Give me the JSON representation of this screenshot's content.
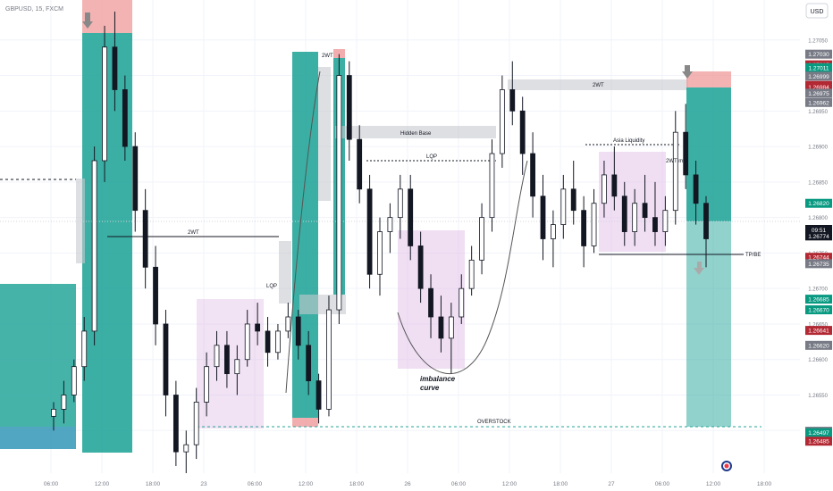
{
  "header": {
    "symbol": "GBPUSD, 15, FXCM"
  },
  "currency": "USD",
  "clock": "09:51",
  "colors": {
    "bull": "#089981",
    "bear": "#f23645",
    "candle": "#131722",
    "zone_green": "#26a69a",
    "zone_red": "#ef9a9a",
    "zone_purple": "#e1bee7",
    "zone_grey": "#c8cacf",
    "grid": "#f0f3fa",
    "axis_text": "#787b86"
  },
  "chart_data": {
    "type": "candlestick",
    "title": "GBPUSD, 15, FXCM",
    "ylim": [
      1.2644,
      1.271
    ],
    "y_ticks": [
      1.265,
      1.2655,
      1.266,
      1.2665,
      1.267,
      1.2675,
      1.268,
      1.2685,
      1.269,
      1.2695,
      1.27,
      1.2705
    ],
    "x_ticks": [
      "06:00",
      "12:00",
      "18:00",
      "23",
      "06:00",
      "12:00",
      "18:00",
      "26",
      "06:00",
      "12:00",
      "18:00",
      "27",
      "06:00",
      "12:00",
      "18:00"
    ],
    "grid": true,
    "price_tags": [
      {
        "value": "1.27030",
        "color": "#787b86"
      },
      {
        "value": "1.27015",
        "color": "#b22833"
      },
      {
        "value": "1.27011",
        "color": "#089981"
      },
      {
        "value": "1.26999",
        "color": "#787b86"
      },
      {
        "value": "1.26986",
        "color": "#b22833"
      },
      {
        "value": "1.26984",
        "color": "#b22833"
      },
      {
        "value": "1.26975",
        "color": "#787b86"
      },
      {
        "value": "1.26962",
        "color": "#787b86"
      },
      {
        "value": "1.26820",
        "color": "#089981"
      },
      {
        "value": "1.26774",
        "color": "#131722"
      },
      {
        "value": "1.26744",
        "color": "#b22833"
      },
      {
        "value": "1.26735",
        "color": "#787b86"
      },
      {
        "value": "1.26685",
        "color": "#089981"
      },
      {
        "value": "1.26670",
        "color": "#089981"
      },
      {
        "value": "1.26641",
        "color": "#b22833"
      },
      {
        "value": "1.26620",
        "color": "#787b86"
      },
      {
        "value": "1.26499",
        "color": "#787b86"
      },
      {
        "value": "1.26497",
        "color": "#089981"
      },
      {
        "value": "1.26487",
        "color": "#089981"
      },
      {
        "value": "1.26485",
        "color": "#b22833"
      }
    ],
    "annotations": [
      "2WT",
      "2WT",
      "2WT",
      "Hidden Base",
      "LQP",
      "LQP",
      "Asia Liquidity",
      "2WT mini",
      "TP/BE",
      "OVERSTOCK",
      "imbalance",
      "curve"
    ],
    "candles": [
      [
        1.2652,
        1.2654,
        1.265,
        1.2653
      ],
      [
        1.2653,
        1.2657,
        1.2651,
        1.2655
      ],
      [
        1.2655,
        1.266,
        1.2654,
        1.2659
      ],
      [
        1.2659,
        1.2666,
        1.2657,
        1.2664
      ],
      [
        1.2664,
        1.269,
        1.2662,
        1.2688
      ],
      [
        1.2688,
        1.2707,
        1.2685,
        1.2704
      ],
      [
        1.2704,
        1.2709,
        1.2695,
        1.2698
      ],
      [
        1.2698,
        1.27,
        1.2688,
        1.269
      ],
      [
        1.269,
        1.2692,
        1.2678,
        1.2681
      ],
      [
        1.2681,
        1.2684,
        1.267,
        1.2673
      ],
      [
        1.2673,
        1.2676,
        1.2662,
        1.2665
      ],
      [
        1.2665,
        1.2667,
        1.2652,
        1.2655
      ],
      [
        1.2655,
        1.2657,
        1.2645,
        1.2647
      ],
      [
        1.2647,
        1.265,
        1.2644,
        1.2648
      ],
      [
        1.2648,
        1.2656,
        1.2646,
        1.2654
      ],
      [
        1.2654,
        1.2661,
        1.2652,
        1.2659
      ],
      [
        1.2659,
        1.2664,
        1.2657,
        1.2662
      ],
      [
        1.2662,
        1.2664,
        1.2656,
        1.2658
      ],
      [
        1.2658,
        1.2662,
        1.2655,
        1.266
      ],
      [
        1.266,
        1.2667,
        1.2659,
        1.2665
      ],
      [
        1.2665,
        1.2668,
        1.2662,
        1.2664
      ],
      [
        1.2664,
        1.2666,
        1.2659,
        1.2661
      ],
      [
        1.2661,
        1.2665,
        1.266,
        1.2664
      ],
      [
        1.2664,
        1.2668,
        1.2663,
        1.2666
      ],
      [
        1.2666,
        1.2667,
        1.266,
        1.2662
      ],
      [
        1.2662,
        1.2664,
        1.2655,
        1.2657
      ],
      [
        1.2657,
        1.2658,
        1.2651,
        1.2653
      ],
      [
        1.2653,
        1.2669,
        1.2652,
        1.2667
      ],
      [
        1.2667,
        1.2703,
        1.2665,
        1.27
      ],
      [
        1.27,
        1.2702,
        1.2688,
        1.2691
      ],
      [
        1.2691,
        1.2693,
        1.2682,
        1.2684
      ],
      [
        1.2684,
        1.2686,
        1.267,
        1.2672
      ],
      [
        1.2672,
        1.268,
        1.2669,
        1.2678
      ],
      [
        1.2678,
        1.2682,
        1.2675,
        1.268
      ],
      [
        1.268,
        1.2686,
        1.2677,
        1.2684
      ],
      [
        1.2684,
        1.2686,
        1.2674,
        1.2676
      ],
      [
        1.2676,
        1.2678,
        1.2668,
        1.267
      ],
      [
        1.267,
        1.2672,
        1.2663,
        1.2666
      ],
      [
        1.2666,
        1.2669,
        1.2661,
        1.2663
      ],
      [
        1.2663,
        1.2668,
        1.2658,
        1.2666
      ],
      [
        1.2666,
        1.2672,
        1.2665,
        1.267
      ],
      [
        1.267,
        1.2676,
        1.2669,
        1.2674
      ],
      [
        1.2674,
        1.2682,
        1.2672,
        1.268
      ],
      [
        1.268,
        1.2691,
        1.2678,
        1.2689
      ],
      [
        1.2689,
        1.27,
        1.2687,
        1.2698
      ],
      [
        1.2698,
        1.2702,
        1.2693,
        1.2695
      ],
      [
        1.2695,
        1.2697,
        1.2686,
        1.2689
      ],
      [
        1.2689,
        1.2692,
        1.268,
        1.2683
      ],
      [
        1.2683,
        1.2686,
        1.2674,
        1.2677
      ],
      [
        1.2677,
        1.2681,
        1.2673,
        1.2679
      ],
      [
        1.2679,
        1.2686,
        1.2677,
        1.2684
      ],
      [
        1.2684,
        1.2688,
        1.2679,
        1.2681
      ],
      [
        1.2681,
        1.2683,
        1.2673,
        1.2676
      ],
      [
        1.2676,
        1.2684,
        1.2675,
        1.2682
      ],
      [
        1.2682,
        1.2688,
        1.268,
        1.2686
      ],
      [
        1.2686,
        1.269,
        1.2681,
        1.2683
      ],
      [
        1.2683,
        1.2685,
        1.2676,
        1.2678
      ],
      [
        1.2678,
        1.2684,
        1.2676,
        1.2682
      ],
      [
        1.2682,
        1.2686,
        1.2678,
        1.268
      ],
      [
        1.268,
        1.2685,
        1.2676,
        1.2678
      ],
      [
        1.2678,
        1.2683,
        1.2676,
        1.2681
      ],
      [
        1.2681,
        1.2695,
        1.2679,
        1.2692
      ],
      [
        1.2692,
        1.2696,
        1.2684,
        1.2686
      ],
      [
        1.2686,
        1.2688,
        1.2679,
        1.2682
      ],
      [
        1.2682,
        1.2683,
        1.2673,
        1.2677
      ]
    ]
  }
}
